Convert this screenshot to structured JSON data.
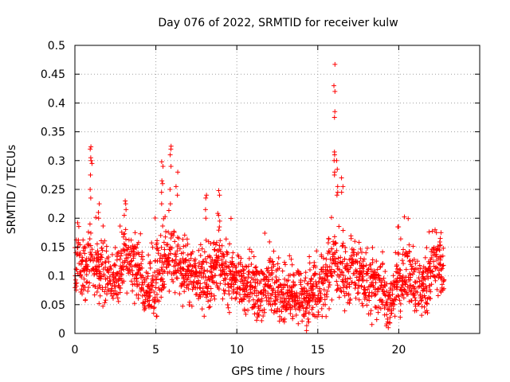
{
  "chart_data": {
    "type": "scatter",
    "title": "Day 076 of 2022, SRMTID for receiver kulw",
    "xlabel": "GPS time / hours",
    "ylabel": "SRMTID / TECUs",
    "xlim": [
      0,
      25
    ],
    "ylim": [
      0,
      0.5
    ],
    "xticks": [
      0,
      5,
      10,
      15,
      20
    ],
    "xtick_labels": [
      "0",
      "5",
      "10",
      "15",
      "20"
    ],
    "yticks": [
      0,
      0.05,
      0.1,
      0.15,
      0.2,
      0.25,
      0.3,
      0.35,
      0.4,
      0.45,
      0.5
    ],
    "ytick_labels": [
      "0",
      "0.05",
      "0.1",
      "0.15",
      "0.2",
      "0.25",
      "0.3",
      "0.35",
      "0.4",
      "0.45",
      "0.5"
    ],
    "grid": true,
    "marker": "plus",
    "marker_color": "#ff0000",
    "series": [
      {
        "name": "SRMTID",
        "profile": [
          [
            0.0,
            0.11
          ],
          [
            0.2,
            0.13
          ],
          [
            0.5,
            0.1
          ],
          [
            0.8,
            0.12
          ],
          [
            1.0,
            0.14
          ],
          [
            1.5,
            0.11
          ],
          [
            2.0,
            0.1
          ],
          [
            2.5,
            0.09
          ],
          [
            3.0,
            0.13
          ],
          [
            3.5,
            0.12
          ],
          [
            4.0,
            0.1
          ],
          [
            4.3,
            0.07
          ],
          [
            4.7,
            0.08
          ],
          [
            5.0,
            0.09
          ],
          [
            5.5,
            0.12
          ],
          [
            6.0,
            0.14
          ],
          [
            6.5,
            0.11
          ],
          [
            7.0,
            0.1
          ],
          [
            7.5,
            0.11
          ],
          [
            8.0,
            0.09
          ],
          [
            8.5,
            0.1
          ],
          [
            9.0,
            0.12
          ],
          [
            9.5,
            0.09
          ],
          [
            10.0,
            0.1
          ],
          [
            10.5,
            0.08
          ],
          [
            11.0,
            0.08
          ],
          [
            11.5,
            0.07
          ],
          [
            12.0,
            0.08
          ],
          [
            12.5,
            0.07
          ],
          [
            13.0,
            0.065
          ],
          [
            13.5,
            0.065
          ],
          [
            14.0,
            0.07
          ],
          [
            14.5,
            0.065
          ],
          [
            15.0,
            0.07
          ],
          [
            15.5,
            0.09
          ],
          [
            16.0,
            0.13
          ],
          [
            16.5,
            0.11
          ],
          [
            17.0,
            0.1
          ],
          [
            17.5,
            0.11
          ],
          [
            18.0,
            0.08
          ],
          [
            18.5,
            0.08
          ],
          [
            19.0,
            0.07
          ],
          [
            19.3,
            0.05
          ],
          [
            19.6,
            0.06
          ],
          [
            20.0,
            0.09
          ],
          [
            20.5,
            0.1
          ],
          [
            21.0,
            0.08
          ],
          [
            21.5,
            0.07
          ],
          [
            22.0,
            0.11
          ],
          [
            22.5,
            0.12
          ],
          [
            22.8,
            0.09
          ]
        ],
        "spread": 0.025,
        "spikes": [
          {
            "x": 1.0,
            "values": [
              0.324,
              0.32,
              0.305,
              0.3,
              0.295,
              0.275,
              0.25,
              0.235
            ]
          },
          {
            "x": 1.5,
            "values": [
              0.225,
              0.21,
              0.2
            ]
          },
          {
            "x": 3.1,
            "values": [
              0.23,
              0.225,
              0.215,
              0.205
            ]
          },
          {
            "x": 5.4,
            "values": [
              0.298,
              0.29,
              0.265,
              0.26,
              0.245,
              0.225
            ]
          },
          {
            "x": 5.9,
            "values": [
              0.325,
              0.32,
              0.31,
              0.29,
              0.25,
              0.225
            ]
          },
          {
            "x": 6.3,
            "values": [
              0.28,
              0.255,
              0.24
            ]
          },
          {
            "x": 8.1,
            "values": [
              0.24,
              0.235,
              0.215,
              0.2
            ]
          },
          {
            "x": 8.9,
            "values": [
              0.248,
              0.24,
              0.205,
              0.195
            ]
          },
          {
            "x": 16.0,
            "values": [
              0.467,
              0.43,
              0.42,
              0.385,
              0.375,
              0.315,
              0.31,
              0.3,
              0.28,
              0.275
            ]
          },
          {
            "x": 16.2,
            "values": [
              0.3,
              0.285,
              0.255,
              0.245,
              0.24
            ]
          },
          {
            "x": 16.5,
            "values": [
              0.27,
              0.255,
              0.245
            ]
          },
          {
            "x": 20.0,
            "values": [
              0.185,
              0.185
            ]
          },
          {
            "x": 22.3,
            "values": [
              0.18,
              0.175
            ]
          },
          {
            "x": 22.6,
            "values": [
              0.175,
              0.165
            ]
          }
        ],
        "lows": [
          {
            "x": 5.1,
            "values": [
              0.03,
              0.03
            ]
          },
          {
            "x": 13.0,
            "values": [
              0.02,
              0.025
            ]
          },
          {
            "x": 14.4,
            "values": [
              0.02,
              0.025
            ]
          },
          {
            "x": 19.3,
            "values": [
              0.01,
              0.02,
              0.025
            ]
          }
        ]
      }
    ]
  }
}
